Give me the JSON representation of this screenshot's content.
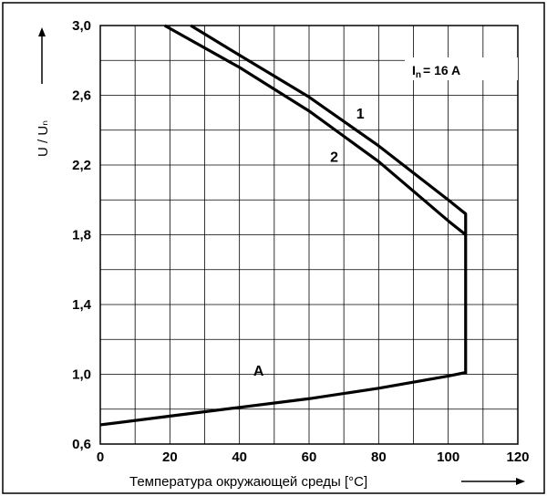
{
  "chart_data": {
    "type": "line",
    "xlabel": "Температура окружающей среды [°C]",
    "ylabel": "U / Uₙ",
    "xlim": [
      0,
      120
    ],
    "ylim": [
      0.6,
      3.0
    ],
    "x_ticks": [
      "0",
      "20",
      "40",
      "60",
      "80",
      "100",
      "120"
    ],
    "y_ticks": [
      "0,6",
      "1,0",
      "1,4",
      "1,8",
      "2,2",
      "2,6",
      "3,0"
    ],
    "grid": true,
    "note": {
      "prefix": "I",
      "sub": "n",
      "text": "= 16 A"
    },
    "series": [
      {
        "name": "1",
        "x": [
          26,
          40,
          60,
          80,
          100,
          105,
          105
        ],
        "y": [
          3.0,
          2.83,
          2.59,
          2.31,
          2.0,
          1.92,
          1.0
        ]
      },
      {
        "name": "2",
        "x": [
          18.5,
          40,
          60,
          80,
          100,
          105
        ],
        "y": [
          3.0,
          2.76,
          2.51,
          2.22,
          1.88,
          1.8
        ]
      },
      {
        "name": "A",
        "x": [
          0,
          20,
          40,
          60,
          80,
          100,
          105
        ],
        "y": [
          0.71,
          0.76,
          0.81,
          0.86,
          0.92,
          0.99,
          1.01
        ]
      }
    ]
  }
}
